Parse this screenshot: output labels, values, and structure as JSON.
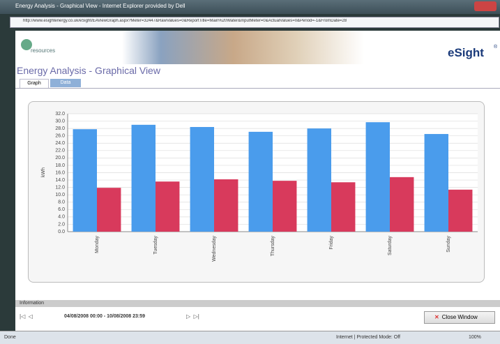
{
  "window": {
    "title": "Energy Analysis - Graphical View - Internet Explorer provided by Dell",
    "url": "http://www.esightenergy.co.uk/eSight/EAViewGraph.aspx?Meter=32447&RawValues=0&ReportTitle=Main%20Water&InputMeter=0&ActualValues=0&Period=-1&FromDate=28"
  },
  "header": {
    "logo_text": "resources",
    "brand": "eSight",
    "brand_mark": "®",
    "title": "Energy Analysis - Graphical View"
  },
  "tabs": [
    "Graph",
    "Data"
  ],
  "chart_data": {
    "type": "bar",
    "y_label": "kWh",
    "categories": [
      "Monday",
      "Tuesday",
      "Wednesday",
      "Thursday",
      "Friday",
      "Saturday",
      "Sunday"
    ],
    "series": [
      {
        "color": "#4a9cec",
        "values": [
          27.8,
          29.0,
          28.4,
          27.1,
          28.0,
          29.7,
          26.5
        ]
      },
      {
        "color": "#d83a5c",
        "values": [
          11.9,
          13.6,
          14.2,
          13.8,
          13.4,
          14.8,
          11.4
        ]
      }
    ],
    "ylim": [
      0,
      32
    ],
    "yticks": [
      {
        "value": 0,
        "label": "0.0"
      },
      {
        "value": 2,
        "label": "2.0"
      },
      {
        "value": 4,
        "label": "4.0"
      },
      {
        "value": 6,
        "label": "6.0"
      },
      {
        "value": 8,
        "label": "8.0"
      },
      {
        "value": 10,
        "label": "10.0"
      },
      {
        "value": 12,
        "label": "12.0"
      },
      {
        "value": 14,
        "label": "14.0"
      },
      {
        "value": 16,
        "label": "16.0"
      },
      {
        "value": 18,
        "label": "18.0"
      },
      {
        "value": 20,
        "label": "20.0"
      },
      {
        "value": 22,
        "label": "22.0"
      },
      {
        "value": 24,
        "label": "24.0"
      },
      {
        "value": 26,
        "label": "26.0"
      },
      {
        "value": 28,
        "label": "28.0"
      },
      {
        "value": 30,
        "label": "30.0"
      },
      {
        "value": 32,
        "label": "32.0"
      }
    ],
    "grid": true
  },
  "information": {
    "label": "Information",
    "date_range": "04/08/2008 00:00 - 10/08/2008 23:59",
    "close_button": "Close Window"
  },
  "status_bar": {
    "left": "Done",
    "zone": "Internet | Protected Mode: Off",
    "zoom": "100%"
  }
}
